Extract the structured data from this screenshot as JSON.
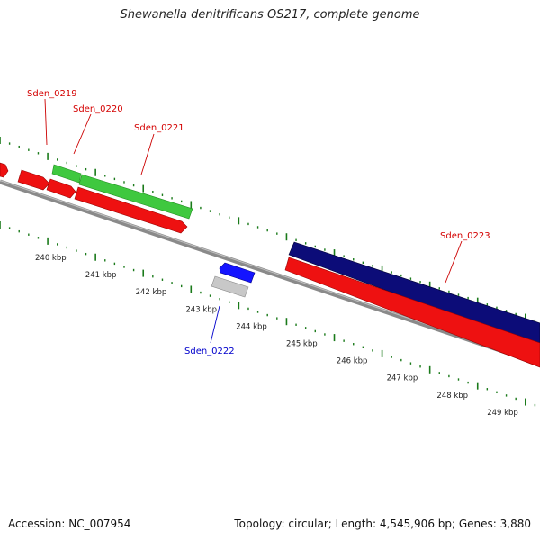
{
  "title": "Shewanella denitrificans OS217, complete genome",
  "footer": {
    "accession": "Accession: NC_007954",
    "summary": "Topology: circular; Length: 4,545,906 bp; Genes: 3,880"
  },
  "colors": {
    "backbone": "#8a8a8a",
    "tick": "#1a7a1a",
    "forward_gene": "#3fc83f",
    "reverse_gene": "#ee1111",
    "gene_blue": "#1414ff",
    "gene_grey": "#c8c8c8",
    "gene_navy": "#0c0c78",
    "label_red": "#d40000",
    "label_blue": "#0000cc"
  },
  "ruler": {
    "labels": [
      "240 kbp",
      "241 kbp",
      "242 kbp",
      "243 kbp",
      "244 kbp",
      "245 kbp",
      "246 kbp",
      "247 kbp",
      "248 kbp",
      "249 kbp"
    ]
  },
  "genes": [
    {
      "label": "Sden_0219",
      "color": "label_red"
    },
    {
      "label": "Sden_0220",
      "color": "label_red"
    },
    {
      "label": "Sden_0221",
      "color": "label_red"
    },
    {
      "label": "Sden_0222",
      "color": "label_blue"
    },
    {
      "label": "Sden_0223",
      "color": "label_red"
    }
  ]
}
